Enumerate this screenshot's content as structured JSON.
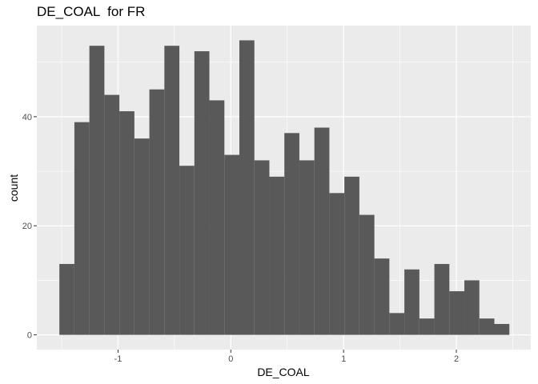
{
  "chart_data": {
    "type": "bar",
    "title": "DE_COAL  for FR",
    "xlabel": "DE_COAL",
    "ylabel": "count",
    "bin_width": 0.133,
    "bins": [
      {
        "x0": -1.52,
        "x1": -1.387,
        "count": 13
      },
      {
        "x0": -1.387,
        "x1": -1.254,
        "count": 39
      },
      {
        "x0": -1.254,
        "x1": -1.121,
        "count": 53
      },
      {
        "x0": -1.121,
        "x1": -0.988,
        "count": 44
      },
      {
        "x0": -0.988,
        "x1": -0.855,
        "count": 41
      },
      {
        "x0": -0.855,
        "x1": -0.722,
        "count": 36
      },
      {
        "x0": -0.722,
        "x1": -0.589,
        "count": 45
      },
      {
        "x0": -0.589,
        "x1": -0.456,
        "count": 53
      },
      {
        "x0": -0.456,
        "x1": -0.323,
        "count": 31
      },
      {
        "x0": -0.323,
        "x1": -0.19,
        "count": 52
      },
      {
        "x0": -0.19,
        "x1": -0.057,
        "count": 43
      },
      {
        "x0": -0.057,
        "x1": 0.076,
        "count": 33
      },
      {
        "x0": 0.076,
        "x1": 0.209,
        "count": 54
      },
      {
        "x0": 0.209,
        "x1": 0.342,
        "count": 32
      },
      {
        "x0": 0.342,
        "x1": 0.475,
        "count": 29
      },
      {
        "x0": 0.475,
        "x1": 0.608,
        "count": 37
      },
      {
        "x0": 0.608,
        "x1": 0.741,
        "count": 32
      },
      {
        "x0": 0.741,
        "x1": 0.874,
        "count": 38
      },
      {
        "x0": 0.874,
        "x1": 1.007,
        "count": 26
      },
      {
        "x0": 1.007,
        "x1": 1.14,
        "count": 29
      },
      {
        "x0": 1.14,
        "x1": 1.273,
        "count": 22
      },
      {
        "x0": 1.273,
        "x1": 1.406,
        "count": 14
      },
      {
        "x0": 1.406,
        "x1": 1.539,
        "count": 4
      },
      {
        "x0": 1.539,
        "x1": 1.672,
        "count": 12
      },
      {
        "x0": 1.672,
        "x1": 1.805,
        "count": 3
      },
      {
        "x0": 1.805,
        "x1": 1.938,
        "count": 13
      },
      {
        "x0": 1.938,
        "x1": 2.071,
        "count": 8
      },
      {
        "x0": 2.071,
        "x1": 2.204,
        "count": 10
      },
      {
        "x0": 2.204,
        "x1": 2.337,
        "count": 3
      },
      {
        "x0": 2.337,
        "x1": 2.47,
        "count": 2
      }
    ],
    "xlim": [
      -1.72,
      2.66
    ],
    "ylim": [
      -2.7,
      56.7
    ],
    "x_ticks": [
      -1,
      0,
      1,
      2
    ],
    "x_tick_labels": [
      "-1",
      "0",
      "1",
      "2"
    ],
    "x_minor_ticks": [
      -1.5,
      -0.5,
      0.5,
      1.5,
      2.5
    ],
    "y_ticks": [
      0,
      20,
      40
    ],
    "y_tick_labels": [
      "0",
      "20",
      "40"
    ],
    "y_minor_ticks": [
      10,
      30,
      50
    ],
    "grid": true,
    "legend": "none",
    "colors": {
      "panel_background": "#ebebeb",
      "grid_major": "#ffffff",
      "bar_fill": "#595959",
      "tick_label": "#4d4d4d",
      "tick_mark": "#333333"
    }
  }
}
